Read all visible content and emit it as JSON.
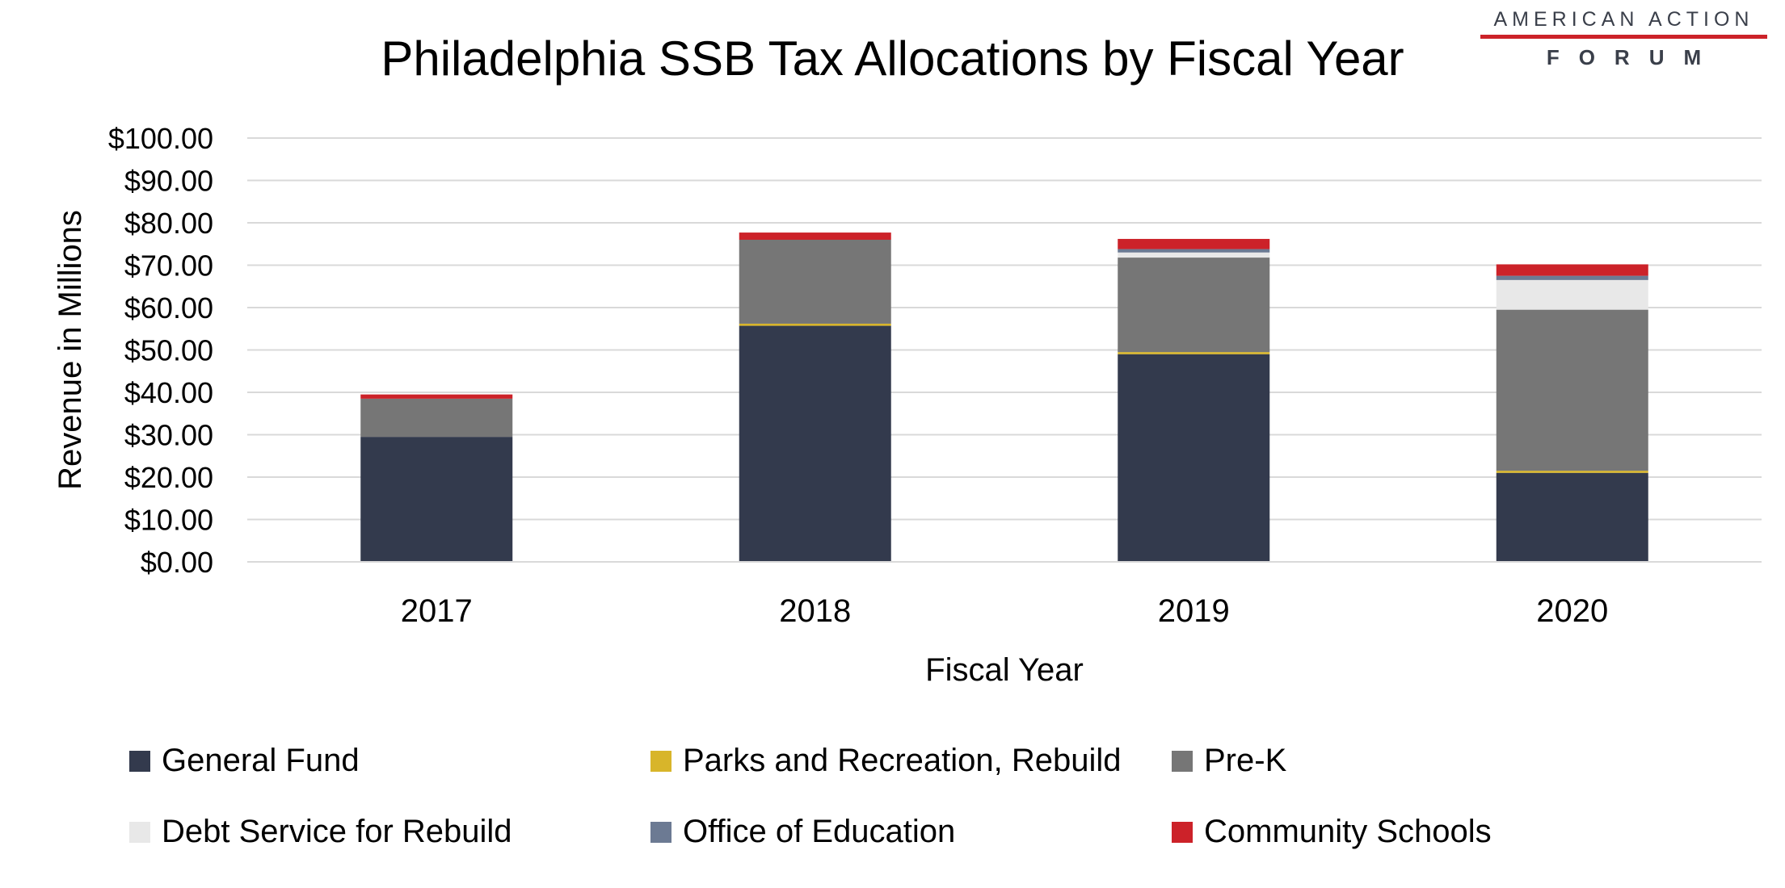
{
  "logo": {
    "top": "AMERICAN ACTION",
    "bottom": "FORUM"
  },
  "chart_data": {
    "type": "bar",
    "stacked": true,
    "title": "Philadelphia SSB Tax Allocations by Fiscal Year",
    "xlabel": "Fiscal Year",
    "ylabel": "Revenue in Millions",
    "ylim": [
      0,
      100
    ],
    "yticks": [
      "$0.00",
      "$10.00",
      "$20.00",
      "$30.00",
      "$40.00",
      "$50.00",
      "$60.00",
      "$70.00",
      "$80.00",
      "$90.00",
      "$100.00"
    ],
    "categories": [
      "2017",
      "2018",
      "2019",
      "2020"
    ],
    "series": [
      {
        "name": "General Fund",
        "color": "#333a4d",
        "values": [
          29.5,
          55.7,
          49.0,
          21.0
        ]
      },
      {
        "name": "Parks and Recreation, Rebuild",
        "color": "#d8b52a",
        "values": [
          0.0,
          0.5,
          0.5,
          0.5
        ]
      },
      {
        "name": "Pre-K",
        "color": "#767676",
        "values": [
          9.0,
          19.8,
          22.3,
          38.0
        ]
      },
      {
        "name": "Debt Service for Rebuild",
        "color": "#e8e8e8",
        "values": [
          0.0,
          0.0,
          1.2,
          7.0
        ]
      },
      {
        "name": "Office of Education",
        "color": "#6c7a93",
        "values": [
          0.0,
          0.0,
          0.8,
          1.0
        ]
      },
      {
        "name": "Community Schools",
        "color": "#cc2229",
        "values": [
          1.0,
          1.7,
          2.4,
          2.7
        ]
      }
    ],
    "legend_position": "bottom",
    "grid": true
  }
}
